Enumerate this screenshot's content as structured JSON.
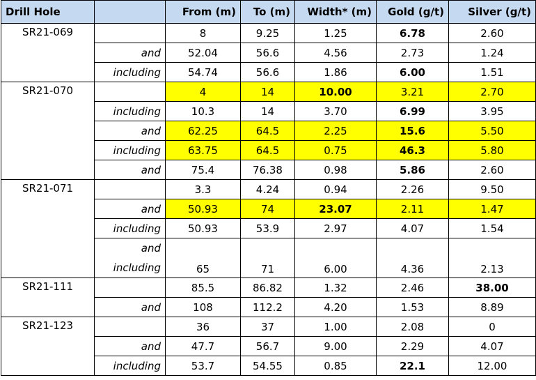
{
  "headers": [
    "Drill Hole",
    "",
    "From (m)",
    "To (m)",
    "Width* (m)",
    "Gold (g/t)",
    "Silver (g/t)"
  ],
  "holes": [
    {
      "name": "SR21-069",
      "rows": [
        {
          "qual": "",
          "from": "8",
          "to": "9.25",
          "width": "1.25",
          "gold": "6.78",
          "silver": "2.60"
        },
        {
          "qual": "and",
          "from": "52.04",
          "to": "56.6",
          "width": "4.56",
          "gold": "2.73",
          "silver": "1.24"
        },
        {
          "qual": "including",
          "from": "54.74",
          "to": "56.6",
          "width": "1.86",
          "gold": "6.00",
          "silver": "1.51"
        }
      ]
    },
    {
      "name": "SR21-070",
      "rows": [
        {
          "qual": "",
          "from": "4",
          "to": "14",
          "width": "10.00",
          "gold": "3.21",
          "silver": "2.70"
        },
        {
          "qual": "including",
          "from": "10.3",
          "to": "14",
          "width": "3.70",
          "gold": "6.99",
          "silver": "3.95"
        },
        {
          "qual": "and",
          "from": "62.25",
          "to": "64.5",
          "width": "2.25",
          "gold": "15.6",
          "silver": "5.50"
        },
        {
          "qual": "including",
          "from": "63.75",
          "to": "64.5",
          "width": "0.75",
          "gold": "46.3",
          "silver": "5.80"
        },
        {
          "qual": "and",
          "from": "75.4",
          "to": "76.38",
          "width": "0.98",
          "gold": "5.86",
          "silver": "2.60"
        }
      ]
    },
    {
      "name": "SR21-071",
      "rows": [
        {
          "qual": "",
          "from": "3.3",
          "to": "4.24",
          "width": "0.94",
          "gold": "2.26",
          "silver": "9.50"
        },
        {
          "qual": "and",
          "from": "50.93",
          "to": "74",
          "width": "23.07",
          "gold": "2.11",
          "silver": "1.47"
        },
        {
          "qual": "including",
          "from": "50.93",
          "to": "53.9",
          "width": "2.97",
          "gold": "4.07",
          "silver": "1.54"
        },
        {
          "qual": "and including",
          "qual1": "and",
          "qual2": "including",
          "from": "65",
          "to": "71",
          "width": "6.00",
          "gold": "4.36",
          "silver": "2.13"
        }
      ]
    },
    {
      "name": "SR21-111",
      "rows": [
        {
          "qual": "",
          "from": "85.5",
          "to": "86.82",
          "width": "1.32",
          "gold": "2.46",
          "silver": "38.00"
        },
        {
          "qual": "and",
          "from": "108",
          "to": "112.2",
          "width": "4.20",
          "gold": "1.53",
          "silver": "8.89"
        }
      ]
    },
    {
      "name": "SR21-123",
      "rows": [
        {
          "qual": "",
          "from": "36",
          "to": "37",
          "width": "1.00",
          "gold": "2.08",
          "silver": "0"
        },
        {
          "qual": "and",
          "from": "47.7",
          "to": "56.7",
          "width": "9.00",
          "gold": "2.29",
          "silver": "4.07"
        },
        {
          "qual": "including",
          "from": "53.7",
          "to": "54.55",
          "width": "0.85",
          "gold": "22.1",
          "silver": "12.00"
        }
      ]
    }
  ],
  "colors": {
    "header_bg": "#c5d9f1",
    "highlight": "#ffff00"
  }
}
